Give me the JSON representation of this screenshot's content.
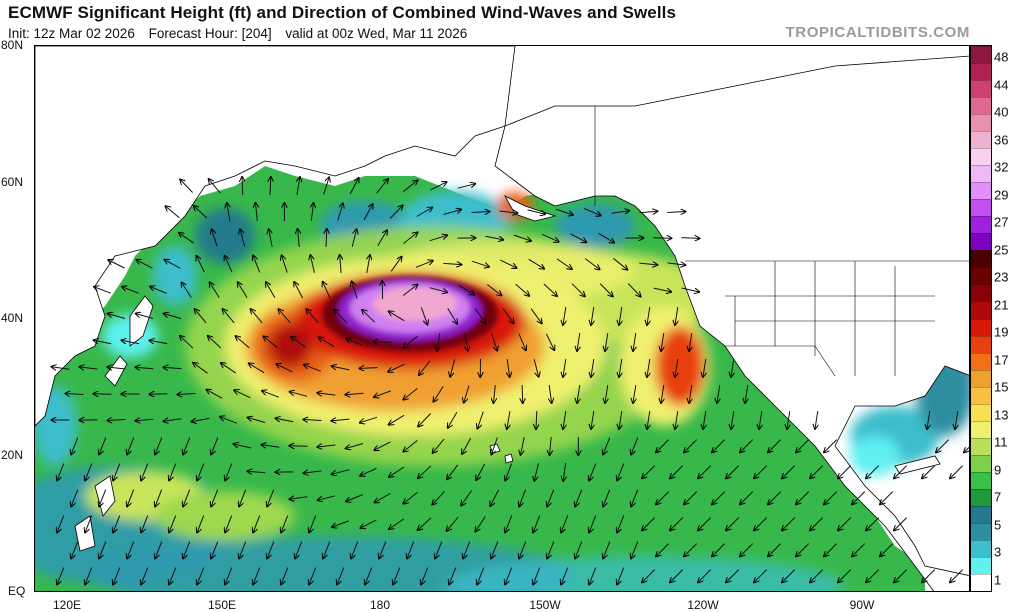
{
  "header": {
    "title": "ECMWF Significant Height (ft) and Direction of Combined Wind-Waves and Swells",
    "init": "Init: 12z Mar 02 2026",
    "forecast_hour": "Forecast Hour: [204]",
    "valid": "valid at 00z Wed, Mar 11 2026",
    "brand": "TROPICALTIDBITS.COM"
  },
  "axes": {
    "lat_labels": [
      "80N",
      "60N",
      "40N",
      "20N",
      "EQ"
    ],
    "lon_labels": [
      "120E",
      "150E",
      "180",
      "150W",
      "120W",
      "90W"
    ]
  },
  "colorbar": {
    "labels": [
      "1",
      "3",
      "5",
      "7",
      "9",
      "11",
      "13",
      "15",
      "17",
      "19",
      "21",
      "23",
      "25",
      "27",
      "29",
      "32",
      "36",
      "40",
      "44",
      "48"
    ],
    "colors": [
      "#ffffff",
      "#5ff0f0",
      "#3dbecd",
      "#2e8ea0",
      "#247a8c",
      "#1e9a3c",
      "#38c048",
      "#7fd048",
      "#b8e05a",
      "#f0f070",
      "#f8e050",
      "#f8c040",
      "#f0a030",
      "#f07018",
      "#e84010",
      "#d81808",
      "#b00808",
      "#880008",
      "#6a0000",
      "#4a0000",
      "#8000c0",
      "#a020e0",
      "#c050f0",
      "#e090f8",
      "#f0b8f8",
      "#f8d0f0",
      "#f0b0d0",
      "#e890b0",
      "#e06890",
      "#d04070",
      "#b02050",
      "#901840"
    ]
  },
  "map": {
    "features": {
      "max_wave_core": "north-pacific-low-center",
      "land_color": "#ffffff",
      "ocean_low_color": "#247a8c"
    }
  }
}
